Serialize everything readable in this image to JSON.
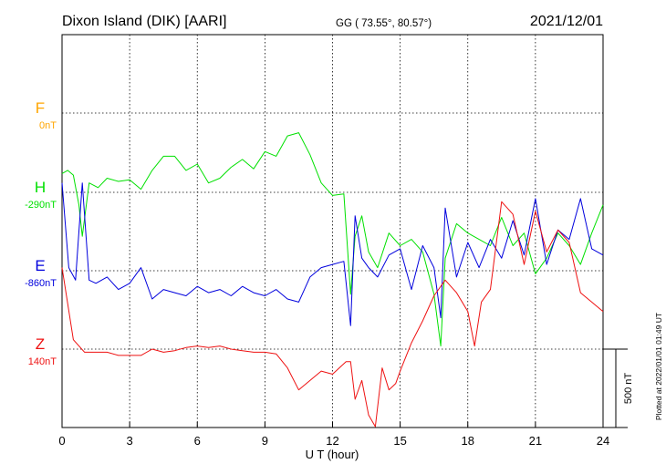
{
  "chart_data": {
    "type": "line",
    "station_title": "Dixon Island (DIK)  [AARI]",
    "coords": "GG ( 73.55°,  80.57°)",
    "date": "2021/12/01",
    "xlabel": "U T (hour)",
    "xlim": [
      0,
      24
    ],
    "xticks": [
      "0",
      "3",
      "6",
      "9",
      "12",
      "15",
      "18",
      "21",
      "24"
    ],
    "scale_label": "500 nT",
    "plotted_note": "Plotted at 2022/01/01 01:49 UT",
    "grid": true,
    "colors": {
      "F": "#ffa500",
      "H": "#00e000",
      "E": "#0000dd",
      "Z": "#ee1111"
    },
    "series": [
      {
        "name": "F",
        "baseline_label": "0nT",
        "values": []
      },
      {
        "name": "H",
        "baseline_label": "-290nT",
        "x": [
          0,
          0.25,
          0.5,
          0.75,
          0.9,
          1.2,
          1.6,
          2.0,
          2.5,
          3.0,
          3.5,
          4.0,
          4.5,
          5.0,
          5.5,
          6.0,
          6.5,
          7.0,
          7.5,
          8.0,
          8.5,
          9.0,
          9.5,
          10.0,
          10.5,
          11.0,
          11.5,
          12.0,
          12.5,
          12.8,
          13.0,
          13.3,
          13.6,
          14.0,
          14.5,
          15.0,
          15.5,
          16.0,
          16.5,
          16.8,
          17.0,
          17.5,
          18.0,
          18.5,
          19.0,
          19.5,
          20.0,
          20.5,
          21.0,
          21.5,
          22.0,
          22.5,
          23.0,
          23.5,
          24.0
        ],
        "values": [
          120,
          140,
          110,
          -80,
          -280,
          60,
          30,
          90,
          70,
          80,
          20,
          140,
          230,
          230,
          140,
          180,
          60,
          90,
          160,
          210,
          150,
          260,
          230,
          360,
          380,
          240,
          60,
          -20,
          -10,
          -650,
          -280,
          -150,
          -380,
          -480,
          -260,
          -340,
          -300,
          -380,
          -650,
          -980,
          -420,
          -200,
          -260,
          -300,
          -340,
          -160,
          -340,
          -260,
          -520,
          -420,
          -260,
          -340,
          -460,
          -260,
          -80
        ]
      },
      {
        "name": "E",
        "baseline_label": "-860nT",
        "x": [
          0,
          0.3,
          0.6,
          0.9,
          1.2,
          1.5,
          2.0,
          2.5,
          3.0,
          3.5,
          4.0,
          4.5,
          5.0,
          5.5,
          6.0,
          6.5,
          7.0,
          7.5,
          8.0,
          8.5,
          9.0,
          9.5,
          10.0,
          10.5,
          11.0,
          11.5,
          12.0,
          12.5,
          12.8,
          13.0,
          13.3,
          13.6,
          14.0,
          14.5,
          15.0,
          15.5,
          16.0,
          16.5,
          16.8,
          17.0,
          17.5,
          18.0,
          18.5,
          19.0,
          19.5,
          20.0,
          20.5,
          21.0,
          21.5,
          22.0,
          22.5,
          23.0,
          23.5,
          24.0
        ],
        "values": [
          560,
          20,
          -60,
          560,
          -60,
          -80,
          -40,
          -120,
          -80,
          20,
          -180,
          -120,
          -140,
          -160,
          -100,
          -140,
          -120,
          -160,
          -100,
          -140,
          -160,
          -120,
          -180,
          -200,
          -40,
          20,
          40,
          60,
          -350,
          350,
          80,
          20,
          -40,
          100,
          140,
          -120,
          160,
          20,
          -300,
          400,
          -40,
          180,
          20,
          200,
          80,
          320,
          100,
          460,
          40,
          260,
          200,
          460,
          140,
          100
        ]
      },
      {
        "name": "Z",
        "baseline_label": "140nT",
        "x": [
          0,
          0.5,
          1.0,
          1.5,
          2.0,
          2.5,
          3.0,
          3.5,
          4.0,
          4.5,
          5.0,
          5.5,
          6.0,
          6.5,
          7.0,
          7.5,
          8.0,
          8.5,
          9.0,
          9.5,
          10.0,
          10.5,
          11.0,
          11.5,
          12.0,
          12.3,
          12.6,
          12.8,
          13.0,
          13.3,
          13.6,
          13.9,
          14.2,
          14.5,
          14.8,
          15.0,
          15.5,
          16.0,
          16.5,
          17.0,
          17.5,
          18.0,
          18.3,
          18.6,
          19.0,
          19.5,
          20.0,
          20.5,
          21.0,
          21.5,
          22.0,
          22.5,
          23.0,
          23.5,
          24.0
        ],
        "values": [
          520,
          60,
          -20,
          -20,
          -20,
          -40,
          -40,
          -40,
          0,
          -20,
          -10,
          10,
          20,
          10,
          20,
          0,
          -10,
          -20,
          -20,
          -30,
          -120,
          -260,
          -200,
          -140,
          -160,
          -120,
          -80,
          -80,
          -320,
          -200,
          -420,
          -760,
          -120,
          -260,
          -220,
          -140,
          40,
          180,
          340,
          440,
          360,
          240,
          20,
          300,
          380,
          940,
          860,
          540,
          880,
          620,
          760,
          680,
          360,
          300,
          240
        ]
      }
    ]
  }
}
